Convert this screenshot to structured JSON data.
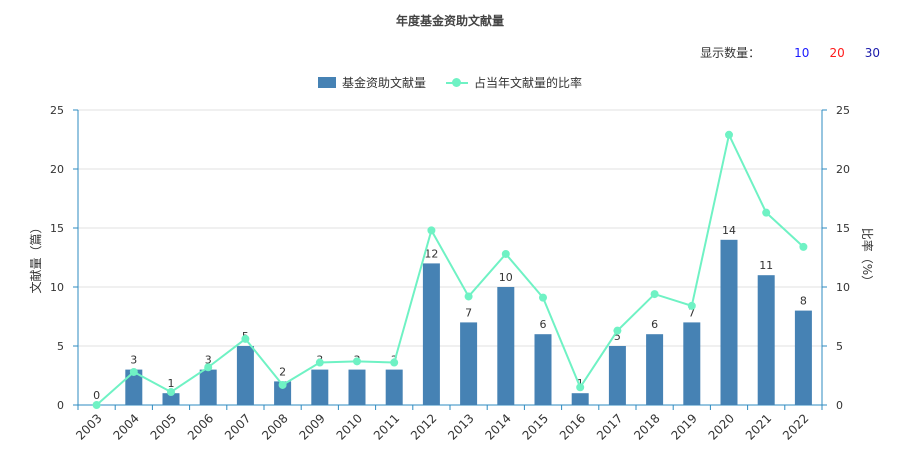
{
  "title": "年度基金资助文献量",
  "count_selector": {
    "label": "显示数量：",
    "options": [
      {
        "label": "10",
        "color": "#1a1aff"
      },
      {
        "label": "20",
        "color": "#ff1a1a"
      },
      {
        "label": "30",
        "color": "#1a1aaa"
      }
    ]
  },
  "colors": {
    "bar": "#4682b4",
    "line": "#6ff2c4",
    "axis": "#2e8bc0"
  },
  "chart_data": {
    "type": "bar",
    "title": "年度基金资助文献量",
    "categories": [
      "2003",
      "2004",
      "2005",
      "2006",
      "2007",
      "2008",
      "2009",
      "2010",
      "2011",
      "2012",
      "2013",
      "2014",
      "2015",
      "2016",
      "2017",
      "2018",
      "2019",
      "2020",
      "2021",
      "2022"
    ],
    "series": [
      {
        "name": "基金资助文献量",
        "type": "bar",
        "axis": "left",
        "values": [
          0,
          3,
          1,
          3,
          5,
          2,
          3,
          3,
          3,
          12,
          7,
          10,
          6,
          1,
          5,
          6,
          7,
          14,
          11,
          8
        ]
      },
      {
        "name": "占当年文献量的比率",
        "type": "line",
        "axis": "right",
        "values": [
          0,
          2.8,
          1.1,
          3.2,
          5.6,
          1.7,
          3.6,
          3.7,
          3.6,
          14.8,
          9.2,
          12.8,
          9.1,
          1.5,
          6.3,
          9.4,
          8.4,
          22.9,
          16.3,
          13.4
        ]
      }
    ],
    "ylabel": "文献量（篇）",
    "y2label": "比率（%）",
    "ylim": [
      0,
      25
    ],
    "y2lim": [
      0,
      25
    ],
    "yticks": [
      "0",
      "5",
      "10",
      "15",
      "20",
      "25"
    ],
    "y2ticks": [
      "0",
      "5",
      "10",
      "15",
      "20",
      "25"
    ],
    "grid": true,
    "legend_position": "top-center"
  }
}
